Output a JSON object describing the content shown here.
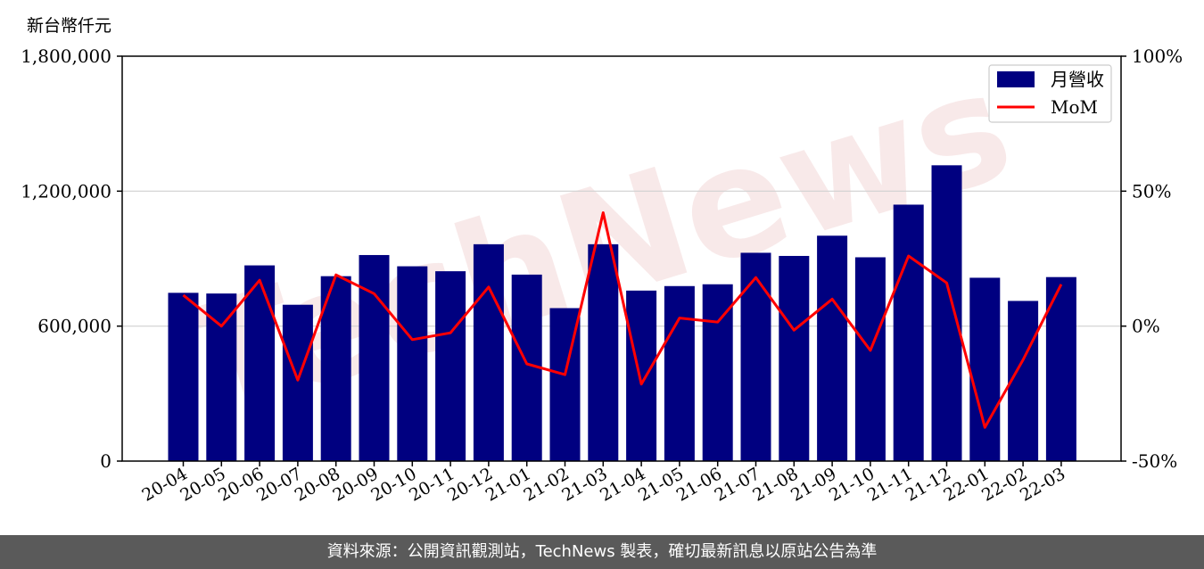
{
  "chart_data": {
    "type": "bar",
    "unit_label": "新台幣仟元",
    "categories": [
      "20-04",
      "20-05",
      "20-06",
      "20-07",
      "20-08",
      "20-09",
      "20-10",
      "20-11",
      "20-12",
      "21-01",
      "21-02",
      "21-03",
      "21-04",
      "21-05",
      "21-06",
      "21-07",
      "21-08",
      "21-09",
      "21-10",
      "21-11",
      "21-12",
      "22-01",
      "22-02",
      "22-03"
    ],
    "series": [
      {
        "name": "月營收",
        "type": "bar",
        "axis": "left",
        "color": "#000080",
        "values": [
          748000,
          745000,
          870000,
          695000,
          822000,
          916000,
          866000,
          844000,
          964000,
          829000,
          680000,
          964000,
          758000,
          778000,
          786000,
          926000,
          912000,
          1002000,
          906000,
          1140000,
          1315000,
          815000,
          712000,
          818000
        ]
      },
      {
        "name": "MoM",
        "type": "line",
        "axis": "right",
        "unit": "%",
        "color": "#ff0000",
        "values": [
          11.5,
          0,
          17,
          -20,
          19,
          12,
          -5,
          -2.5,
          14.5,
          -14,
          -18,
          42,
          -21.5,
          3,
          1.5,
          18,
          -1.5,
          10,
          -9,
          26,
          16,
          -37.5,
          -12.5,
          15.5
        ]
      }
    ],
    "y_left": {
      "ticks": [
        0,
        600000,
        1200000,
        1800000
      ],
      "tick_labels": [
        "0",
        "600,000",
        "1,200,000",
        "1,800,000"
      ],
      "ylim": [
        0,
        1800000
      ]
    },
    "y_right": {
      "ticks": [
        -50,
        0,
        50,
        100
      ],
      "tick_labels": [
        "-50%",
        "0%",
        "50%",
        "100%"
      ],
      "ylim": [
        -50,
        100
      ]
    },
    "grid": "horizontal",
    "legend_position": "top-right",
    "watermark": "TechNews"
  },
  "footer": {
    "text": "資料來源：公開資訊觀測站，TechNews 製表，確切最新訊息以原站公告為準"
  }
}
